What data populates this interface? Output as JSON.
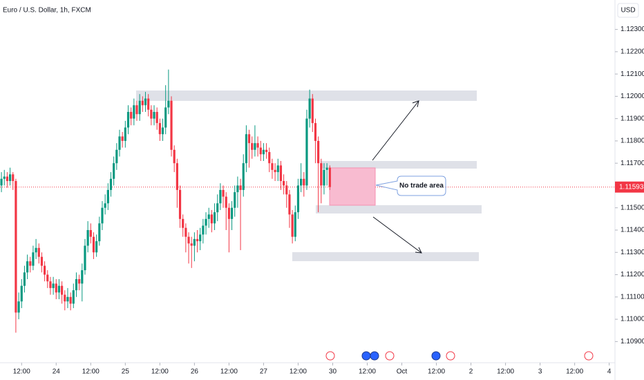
{
  "chart_data": {
    "type": "candlestick",
    "title": "Euro / U.S. Dollar, 1h, FXCM",
    "currency": "USD",
    "annotation": "No trade area",
    "up_color": "#089981",
    "down_color": "#f23645",
    "grid": false,
    "last_price": 1.11593,
    "ylim": [
      1.10805,
      1.12432
    ],
    "yticks": [
      {
        "value": 1.123,
        "label": "1.12300"
      },
      {
        "value": 1.122,
        "label": "1.12200"
      },
      {
        "value": 1.121,
        "label": "1.12100"
      },
      {
        "value": 1.12,
        "label": "1.12000"
      },
      {
        "value": 1.119,
        "label": "1.11900"
      },
      {
        "value": 1.118,
        "label": "1.11800"
      },
      {
        "value": 1.117,
        "label": "1.11700"
      },
      {
        "value": 1.115,
        "label": "1.11500"
      },
      {
        "value": 1.114,
        "label": "1.11400"
      },
      {
        "value": 1.113,
        "label": "1.11300"
      },
      {
        "value": 1.112,
        "label": "1.11200"
      },
      {
        "value": 1.111,
        "label": "1.11100"
      },
      {
        "value": 1.11,
        "label": "1.11000"
      },
      {
        "value": 1.109,
        "label": "1.10900"
      }
    ],
    "xlim": [
      -0.5,
      213
    ],
    "xticks": [
      {
        "value": 7,
        "label": "12:00"
      },
      {
        "value": 19,
        "label": "24"
      },
      {
        "value": 31,
        "label": "12:00"
      },
      {
        "value": 43,
        "label": "25"
      },
      {
        "value": 55,
        "label": "12:00"
      },
      {
        "value": 67,
        "label": "26"
      },
      {
        "value": 79,
        "label": "12:00"
      },
      {
        "value": 91,
        "label": "27"
      },
      {
        "value": 103,
        "label": "12:00"
      },
      {
        "value": 115,
        "label": "30"
      },
      {
        "value": 127,
        "label": "12:00"
      },
      {
        "value": 139,
        "label": "Oct"
      },
      {
        "value": 151,
        "label": "12:00"
      },
      {
        "value": 163,
        "label": "2"
      },
      {
        "value": 175,
        "label": "12:00"
      },
      {
        "value": 187,
        "label": "3"
      },
      {
        "value": 199,
        "label": "12:00"
      },
      {
        "value": 211,
        "label": "4"
      }
    ],
    "open": [
      1.116,
      1.1163,
      1.1164,
      1.1162,
      1.1165,
      1.1162,
      1.1103,
      1.1108,
      1.1115,
      1.1121,
      1.1126,
      1.1124,
      1.113,
      1.1132,
      1.1128,
      1.1124,
      1.112,
      1.1117,
      1.1114,
      1.1116,
      1.1112,
      1.1115,
      1.1111,
      1.1108,
      1.111,
      1.1107,
      1.1113,
      1.1118,
      1.1116,
      1.1122,
      1.1133,
      1.114,
      1.1137,
      1.113,
      1.1135,
      1.1143,
      1.115,
      1.1152,
      1.1158,
      1.1163,
      1.117,
      1.1176,
      1.1182,
      1.118,
      1.1186,
      1.1193,
      1.119,
      1.1196,
      1.1192,
      1.1198,
      1.1196,
      1.1199,
      1.1194,
      1.119,
      1.1193,
      1.1188,
      1.1183,
      1.1186,
      1.1195,
      1.1198,
      1.1176,
      1.117,
      1.1158,
      1.1145,
      1.1141,
      1.1137,
      1.1134,
      1.1133,
      1.1136,
      1.1135,
      1.1138,
      1.1142,
      1.1145,
      1.1147,
      1.1143,
      1.1148,
      1.1152,
      1.1158,
      1.1155,
      1.115,
      1.1145,
      1.115,
      1.1157,
      1.116,
      1.1158,
      1.117,
      1.1183,
      1.1179,
      1.1176,
      1.1179,
      1.1177,
      1.1174,
      1.1176,
      1.1175,
      1.117,
      1.1167,
      1.1166,
      1.1169,
      1.1162,
      1.116,
      1.1156,
      1.1147,
      1.1137,
      1.1148,
      1.116,
      1.1163,
      1.116,
      1.119,
      1.1199,
      1.1188,
      1.118,
      1.117,
      1.116,
      1.1167,
      1.1168
    ],
    "high": [
      1.1166,
      1.1167,
      1.1166,
      1.1168,
      1.1166,
      1.1163,
      1.1112,
      1.1118,
      1.1124,
      1.1129,
      1.1128,
      1.1133,
      1.1136,
      1.1134,
      1.113,
      1.1126,
      1.1122,
      1.1119,
      1.1119,
      1.1118,
      1.1118,
      1.1117,
      1.1113,
      1.1114,
      1.1112,
      1.1116,
      1.1121,
      1.112,
      1.1125,
      1.1136,
      1.1144,
      1.1143,
      1.1139,
      1.1138,
      1.1146,
      1.1153,
      1.1156,
      1.1161,
      1.1166,
      1.1173,
      1.1179,
      1.1185,
      1.1184,
      1.1189,
      1.1196,
      1.1195,
      1.1199,
      1.1198,
      1.1201,
      1.12,
      1.1202,
      1.1201,
      1.1196,
      1.1196,
      1.1195,
      1.119,
      1.119,
      1.1205,
      1.1212,
      1.12,
      1.1178,
      1.1172,
      1.116,
      1.1147,
      1.1143,
      1.1139,
      1.1137,
      1.1139,
      1.114,
      1.1141,
      1.1145,
      1.1148,
      1.115,
      1.1149,
      1.1152,
      1.1156,
      1.1161,
      1.116,
      1.1157,
      1.1152,
      1.1153,
      1.116,
      1.1164,
      1.1163,
      1.1174,
      1.1187,
      1.1185,
      1.1182,
      1.1187,
      1.1182,
      1.118,
      1.1179,
      1.1179,
      1.1177,
      1.1172,
      1.117,
      1.1172,
      1.1171,
      1.1165,
      1.1162,
      1.1158,
      1.1149,
      1.1151,
      1.1163,
      1.117,
      1.1166,
      1.1194,
      1.1203,
      1.1201,
      1.119,
      1.1182,
      1.1172,
      1.117,
      1.117,
      1.1169
    ],
    "low": [
      1.1157,
      1.116,
      1.1159,
      1.116,
      1.1158,
      1.1094,
      1.11,
      1.1105,
      1.1112,
      1.1118,
      1.1121,
      1.1122,
      1.1127,
      1.1125,
      1.1121,
      1.1117,
      1.1114,
      1.1111,
      1.1111,
      1.1109,
      1.1109,
      1.1107,
      1.1104,
      1.1105,
      1.1104,
      1.1105,
      1.111,
      1.1113,
      1.1108,
      1.112,
      1.113,
      1.1134,
      1.1127,
      1.1128,
      1.1133,
      1.114,
      1.1147,
      1.1149,
      1.1155,
      1.116,
      1.1167,
      1.1173,
      1.1177,
      1.1177,
      1.1183,
      1.1187,
      1.1187,
      1.1189,
      1.1189,
      1.1193,
      1.1193,
      1.1191,
      1.1187,
      1.1187,
      1.1185,
      1.118,
      1.118,
      1.1183,
      1.1192,
      1.1173,
      1.1166,
      1.115,
      1.1141,
      1.1137,
      1.113,
      1.1125,
      1.1123,
      1.1126,
      1.113,
      1.1131,
      1.1134,
      1.1138,
      1.1141,
      1.1139,
      1.114,
      1.1144,
      1.1149,
      1.115,
      1.114,
      1.113,
      1.114,
      1.1146,
      1.115,
      1.1131,
      1.1155,
      1.1166,
      1.1168,
      1.1172,
      1.1173,
      1.1173,
      1.1171,
      1.1171,
      1.1172,
      1.1166,
      1.1163,
      1.1162,
      1.1162,
      1.1158,
      1.1156,
      1.115,
      1.1141,
      1.1134,
      1.1135,
      1.1145,
      1.1157,
      1.1155,
      1.1158,
      1.1186,
      1.1184,
      1.117,
      1.1148,
      1.1152,
      1.1156,
      1.116,
      1.1158
    ],
    "close": [
      1.1163,
      1.1164,
      1.1162,
      1.1165,
      1.1162,
      1.1103,
      1.1108,
      1.1115,
      1.1121,
      1.1126,
      1.1124,
      1.113,
      1.1132,
      1.1128,
      1.1124,
      1.112,
      1.1117,
      1.1114,
      1.1116,
      1.1112,
      1.1115,
      1.1111,
      1.1108,
      1.111,
      1.1107,
      1.1113,
      1.1118,
      1.1116,
      1.1122,
      1.1133,
      1.114,
      1.1137,
      1.113,
      1.1135,
      1.1143,
      1.115,
      1.1152,
      1.1158,
      1.1163,
      1.117,
      1.1176,
      1.1182,
      1.118,
      1.1186,
      1.1193,
      1.119,
      1.1196,
      1.1192,
      1.1198,
      1.1196,
      1.1199,
      1.1194,
      1.119,
      1.1193,
      1.1188,
      1.1183,
      1.1186,
      1.1195,
      1.1198,
      1.1176,
      1.117,
      1.1158,
      1.1145,
      1.1141,
      1.1137,
      1.1134,
      1.1133,
      1.1136,
      1.1135,
      1.1138,
      1.1142,
      1.1145,
      1.1147,
      1.1143,
      1.1148,
      1.1152,
      1.1158,
      1.1155,
      1.115,
      1.1145,
      1.115,
      1.1157,
      1.116,
      1.1158,
      1.117,
      1.1183,
      1.1179,
      1.1176,
      1.1179,
      1.1177,
      1.1174,
      1.1176,
      1.1175,
      1.117,
      1.1167,
      1.1166,
      1.1169,
      1.1162,
      1.116,
      1.1156,
      1.1147,
      1.1137,
      1.1148,
      1.116,
      1.1163,
      1.116,
      1.119,
      1.1199,
      1.1188,
      1.118,
      1.117,
      1.116,
      1.1167,
      1.1168,
      1.11593
    ]
  }
}
